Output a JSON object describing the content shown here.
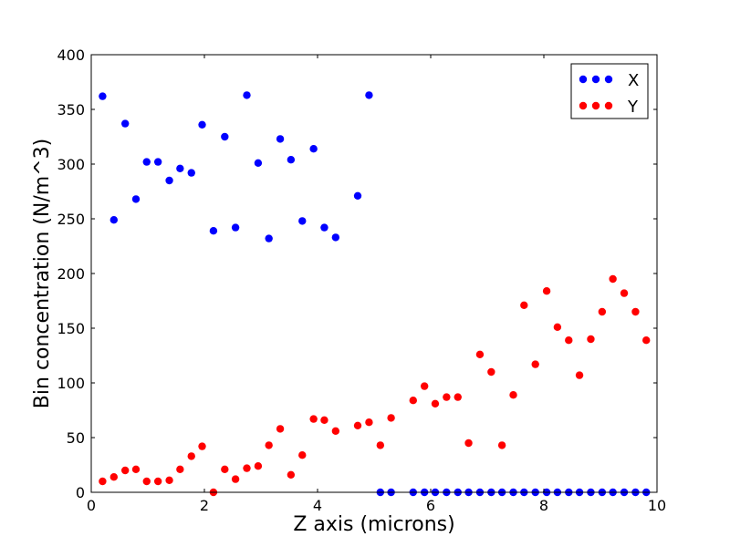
{
  "chart_data": {
    "type": "scatter",
    "title": "",
    "xlabel": "Z axis (microns)",
    "ylabel": "Bin concentration (N/m^3)",
    "xlim": [
      0,
      10
    ],
    "ylim": [
      0,
      400
    ],
    "x_ticks": [
      "0",
      "2",
      "4",
      "6",
      "8",
      "10"
    ],
    "y_ticks": [
      "0",
      "50",
      "100",
      "150",
      "200",
      "250",
      "300",
      "350",
      "400"
    ],
    "grid": false,
    "legend_position": "top-right",
    "series": [
      {
        "name": "X",
        "color": "#0000ff",
        "points": [
          [
            0.2,
            362
          ],
          [
            0.4,
            249
          ],
          [
            0.6,
            337
          ],
          [
            0.79,
            268
          ],
          [
            0.98,
            302
          ],
          [
            1.18,
            302
          ],
          [
            1.38,
            285
          ],
          [
            1.57,
            296
          ],
          [
            1.77,
            292
          ],
          [
            1.96,
            336
          ],
          [
            2.16,
            239
          ],
          [
            2.36,
            325
          ],
          [
            2.55,
            242
          ],
          [
            2.75,
            363
          ],
          [
            2.95,
            301
          ],
          [
            3.14,
            232
          ],
          [
            3.34,
            323
          ],
          [
            3.53,
            304
          ],
          [
            3.73,
            248
          ],
          [
            3.93,
            314
          ],
          [
            4.12,
            242
          ],
          [
            4.32,
            233
          ],
          [
            4.71,
            271
          ],
          [
            4.91,
            363
          ],
          [
            5.11,
            0
          ],
          [
            5.3,
            0
          ],
          [
            5.69,
            0
          ],
          [
            5.89,
            0
          ],
          [
            6.08,
            0
          ],
          [
            6.28,
            0
          ],
          [
            6.48,
            0
          ],
          [
            6.67,
            0
          ],
          [
            6.87,
            0
          ],
          [
            7.07,
            0
          ],
          [
            7.26,
            0
          ],
          [
            7.46,
            0
          ],
          [
            7.65,
            0
          ],
          [
            7.85,
            0
          ],
          [
            8.05,
            0
          ],
          [
            8.24,
            0
          ],
          [
            8.44,
            0
          ],
          [
            8.63,
            0
          ],
          [
            8.83,
            0
          ],
          [
            9.03,
            0
          ],
          [
            9.22,
            0
          ],
          [
            9.42,
            0
          ],
          [
            9.62,
            0
          ],
          [
            9.81,
            0
          ]
        ]
      },
      {
        "name": "Y",
        "color": "#ff0000",
        "points": [
          [
            0.2,
            10
          ],
          [
            0.4,
            14
          ],
          [
            0.6,
            20
          ],
          [
            0.79,
            21
          ],
          [
            0.98,
            10
          ],
          [
            1.18,
            10
          ],
          [
            1.38,
            11
          ],
          [
            1.57,
            21
          ],
          [
            1.77,
            33
          ],
          [
            1.96,
            42
          ],
          [
            2.16,
            0
          ],
          [
            2.36,
            21
          ],
          [
            2.55,
            12
          ],
          [
            2.75,
            22
          ],
          [
            2.95,
            24
          ],
          [
            3.14,
            43
          ],
          [
            3.34,
            58
          ],
          [
            3.53,
            16
          ],
          [
            3.73,
            34
          ],
          [
            3.93,
            67
          ],
          [
            4.12,
            66
          ],
          [
            4.32,
            56
          ],
          [
            4.71,
            61
          ],
          [
            4.91,
            64
          ],
          [
            5.11,
            43
          ],
          [
            5.3,
            68
          ],
          [
            5.69,
            84
          ],
          [
            5.89,
            97
          ],
          [
            6.08,
            81
          ],
          [
            6.28,
            87
          ],
          [
            6.48,
            87
          ],
          [
            6.67,
            45
          ],
          [
            6.87,
            126
          ],
          [
            7.07,
            110
          ],
          [
            7.26,
            43
          ],
          [
            7.46,
            89
          ],
          [
            7.65,
            171
          ],
          [
            7.85,
            117
          ],
          [
            8.05,
            184
          ],
          [
            8.24,
            151
          ],
          [
            8.44,
            139
          ],
          [
            8.63,
            107
          ],
          [
            8.83,
            140
          ],
          [
            9.03,
            165
          ],
          [
            9.22,
            195
          ],
          [
            9.42,
            182
          ],
          [
            9.62,
            165
          ],
          [
            9.81,
            139
          ]
        ]
      }
    ]
  }
}
